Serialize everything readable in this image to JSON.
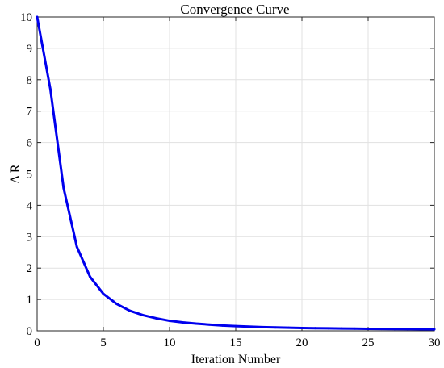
{
  "chart_data": {
    "type": "line",
    "title": "Convergence Curve",
    "xlabel": "Iteration Number",
    "ylabel": "Δ R",
    "xlim": [
      0,
      30
    ],
    "ylim": [
      0,
      10
    ],
    "xticks": [
      0,
      5,
      10,
      15,
      20,
      25,
      30
    ],
    "yticks": [
      0,
      1,
      2,
      3,
      4,
      5,
      6,
      7,
      8,
      9,
      10
    ],
    "grid": true,
    "legend": "none",
    "series": [
      {
        "color": "#0000ee",
        "x": [
          0,
          1,
          2,
          3,
          4,
          5,
          6,
          7,
          8,
          9,
          10,
          11,
          12,
          13,
          14,
          15,
          16,
          17,
          18,
          19,
          20,
          21,
          22,
          23,
          24,
          25,
          26,
          27,
          28,
          29,
          30
        ],
        "y": [
          10,
          7.7,
          4.55,
          2.68,
          1.72,
          1.18,
          0.86,
          0.64,
          0.5,
          0.4,
          0.32,
          0.27,
          0.23,
          0.2,
          0.17,
          0.15,
          0.135,
          0.12,
          0.11,
          0.1,
          0.09,
          0.085,
          0.08,
          0.075,
          0.07,
          0.065,
          0.06,
          0.057,
          0.054,
          0.051,
          0.048
        ]
      }
    ]
  }
}
